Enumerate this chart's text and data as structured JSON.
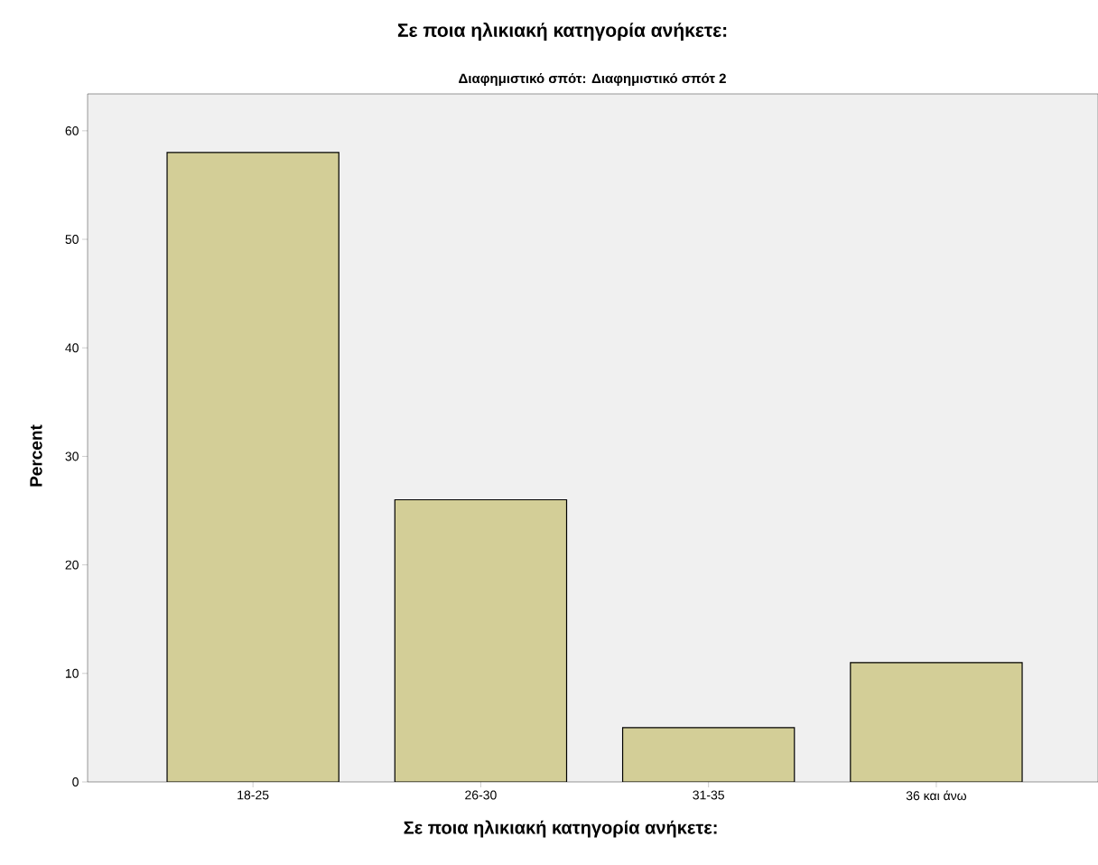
{
  "chart_data": {
    "type": "bar",
    "title": "Σε ποια ηλικιακή κατηγορία ανήκετε:",
    "subtitle": "Διαφημιστικό σπότ: Διαφημιστικό σπότ 2",
    "xlabel": "Σε ποια ηλικιακή κατηγορία ανήκετε:",
    "ylabel": "Percent",
    "categories": [
      "18-25",
      "26-30",
      "31-35",
      "36 και άνω"
    ],
    "values": [
      58,
      26,
      5,
      11
    ],
    "color": "#d3ce97",
    "ylim": [
      0,
      63.4
    ],
    "yticks": [
      0,
      10,
      20,
      30,
      40,
      50,
      60
    ]
  }
}
